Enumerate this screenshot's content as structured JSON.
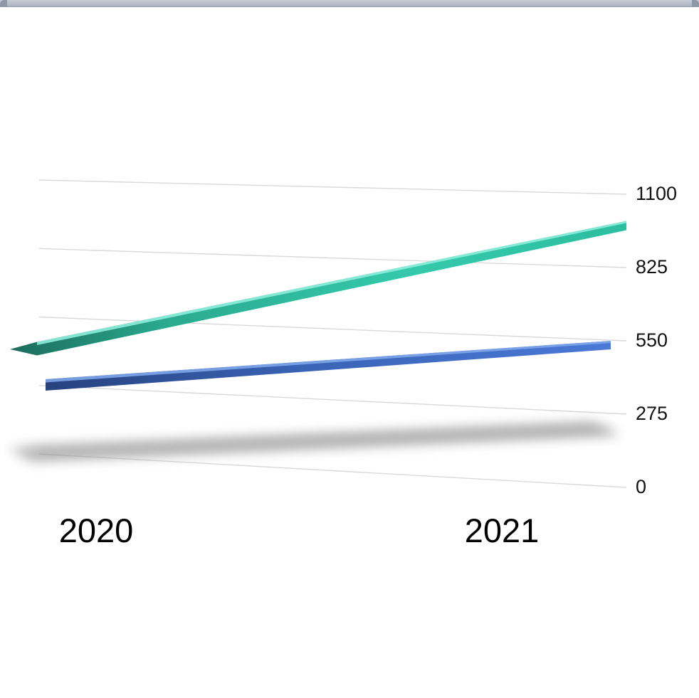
{
  "page": {
    "background_color": "#ffffff",
    "top_bar_color": "#b6bdc9"
  },
  "chart_data": {
    "type": "line",
    "projection": "3d-ribbon",
    "title": "",
    "xlabel": "",
    "ylabel": "",
    "categories": [
      "2020",
      "2021"
    ],
    "series": [
      {
        "name": "",
        "color_hint": "teal-green",
        "color": "#2fbfa4",
        "values": [
          450,
          1000
        ]
      },
      {
        "name": "",
        "color_hint": "blue",
        "color": "#3a66c0",
        "values": [
          300,
          550
        ]
      }
    ],
    "yticks": [
      0,
      275,
      550,
      825,
      1100
    ],
    "ylim": [
      0,
      1100
    ],
    "grid": true,
    "gridline_color": "#d9d9d9",
    "tick_label_color": "#111111",
    "axis_label_color": "#000000",
    "legend": "none",
    "floor_shadow": true
  }
}
